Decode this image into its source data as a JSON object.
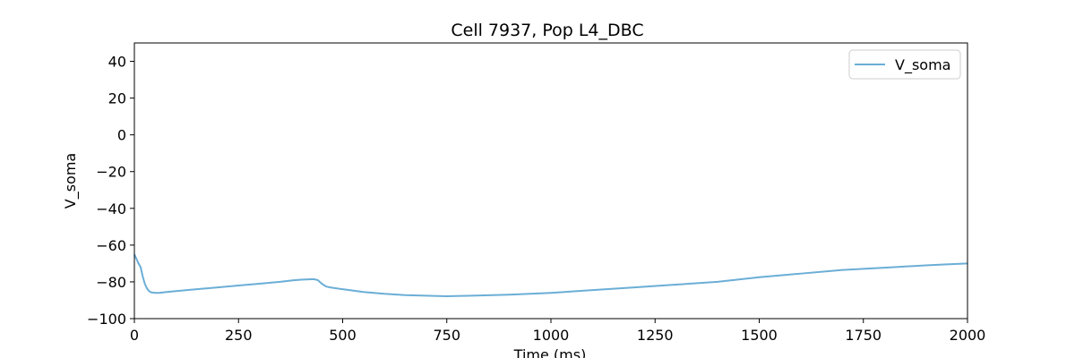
{
  "chart_data": {
    "type": "line",
    "title": "Cell 7937, Pop L4_DBC",
    "xlabel": "Time (ms)",
    "ylabel": "V_soma",
    "xlim": [
      0,
      2000
    ],
    "ylim": [
      -100,
      50
    ],
    "xticks": [
      0,
      250,
      500,
      750,
      1000,
      1250,
      1500,
      1750,
      2000
    ],
    "yticks": [
      -100,
      -80,
      -60,
      -40,
      -20,
      0,
      20,
      40
    ],
    "grid": false,
    "legend_position": "top-right",
    "series": [
      {
        "name": "V_soma",
        "color": "#6baed6",
        "x": [
          0,
          5,
          10,
          15,
          20,
          25,
          30,
          35,
          40,
          50,
          60,
          75,
          100,
          150,
          200,
          250,
          300,
          350,
          380,
          400,
          430,
          440,
          450,
          460,
          470,
          500,
          550,
          600,
          650,
          700,
          750,
          800,
          850,
          900,
          1000,
          1100,
          1200,
          1300,
          1400,
          1500,
          1600,
          1700,
          1800,
          1900,
          1950,
          2000
        ],
        "y": [
          -65,
          -67.5,
          -70,
          -72,
          -77,
          -81,
          -83.5,
          -85,
          -85.7,
          -86,
          -86,
          -85.6,
          -85,
          -84,
          -83,
          -82,
          -81,
          -80,
          -79.2,
          -78.8,
          -78.5,
          -79,
          -81,
          -82.5,
          -83,
          -84,
          -85.5,
          -86.5,
          -87.2,
          -87.5,
          -87.8,
          -87.6,
          -87.3,
          -87,
          -86,
          -84.5,
          -83,
          -81.5,
          -80,
          -77.5,
          -75.5,
          -73.5,
          -72.3,
          -71,
          -70.5,
          -70
        ]
      }
    ]
  }
}
